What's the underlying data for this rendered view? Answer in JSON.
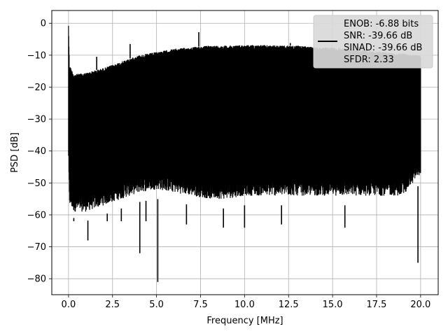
{
  "chart_data": {
    "type": "line",
    "xlabel": "Frequency [MHz]",
    "ylabel": "PSD [dB]",
    "xlim": [
      -0.95,
      21.0
    ],
    "ylim": [
      -85,
      4
    ],
    "xticks": [
      0.0,
      2.5,
      5.0,
      7.5,
      10.0,
      12.5,
      15.0,
      17.5,
      20.0
    ],
    "xtick_labels": [
      "0.0",
      "2.5",
      "5.0",
      "7.5",
      "10.0",
      "12.5",
      "15.0",
      "17.5",
      "20.0"
    ],
    "yticks": [
      0,
      -10,
      -20,
      -30,
      -40,
      -50,
      -60,
      -70,
      -80
    ],
    "ytick_labels": [
      "0",
      "−10",
      "−20",
      "−30",
      "−40",
      "−50",
      "−60",
      "−70",
      "−80"
    ],
    "grid": true,
    "legend_position": "top-right",
    "legend_entries": [
      "ENOB: -6.88 bits",
      "SNR: -39.66 dB",
      "SINAD: -39.66 dB",
      "SFDR: 2.33"
    ],
    "series": [
      {
        "color": "#000000",
        "envelope": {
          "x": [
            0.0,
            0.05,
            0.3,
            1.0,
            2.0,
            3.0,
            4.0,
            5.0,
            6.0,
            7.0,
            8.0,
            9.0,
            10.0,
            11.0,
            12.0,
            13.0,
            14.0,
            15.0,
            16.0,
            17.0,
            18.0,
            19.0,
            20.0
          ],
          "upper": [
            0,
            -13,
            -16,
            -15.5,
            -14,
            -12,
            -10,
            -9,
            -8,
            -7.5,
            -7,
            -7,
            -6.8,
            -6.8,
            -7,
            -7,
            -7.5,
            -7.5,
            -8,
            -8.5,
            -9,
            -9.5,
            -10
          ],
          "lower": [
            -46,
            -60,
            -62,
            -62,
            -60,
            -58,
            -56,
            -55,
            -56,
            -57,
            -58,
            -58,
            -57,
            -57,
            -57,
            -57,
            -57,
            -57,
            -57,
            -57,
            -57,
            -57,
            -50
          ]
        },
        "spikes_up": [
          {
            "x": 0.0,
            "y": 0
          },
          {
            "x": 1.6,
            "y": -10.5
          },
          {
            "x": 3.5,
            "y": -6.5
          },
          {
            "x": 7.4,
            "y": -2.8
          },
          {
            "x": 12.6,
            "y": -6.2
          },
          {
            "x": 15.9,
            "y": -6.5
          }
        ],
        "spikes_down": [
          {
            "x": 0.3,
            "y": -61
          },
          {
            "x": 0.6,
            "y": -62
          },
          {
            "x": 1.1,
            "y": -68
          },
          {
            "x": 2.2,
            "y": -62
          },
          {
            "x": 3.0,
            "y": -62
          },
          {
            "x": 4.05,
            "y": -72
          },
          {
            "x": 4.4,
            "y": -62
          },
          {
            "x": 5.07,
            "y": -81
          },
          {
            "x": 6.7,
            "y": -63
          },
          {
            "x": 8.8,
            "y": -64
          },
          {
            "x": 10.0,
            "y": -64
          },
          {
            "x": 12.1,
            "y": -63
          },
          {
            "x": 15.7,
            "y": -64
          },
          {
            "x": 19.85,
            "y": -75
          }
        ]
      }
    ]
  }
}
